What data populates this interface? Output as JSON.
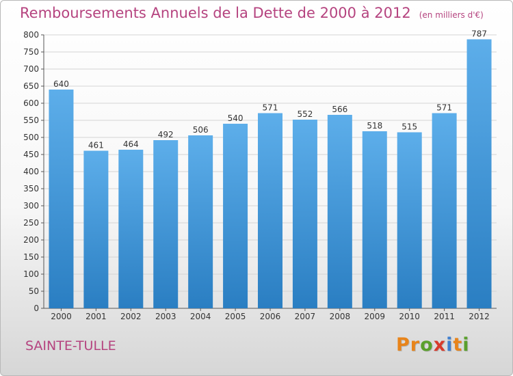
{
  "header": {
    "title": "Remboursements Annuels de la Dette de 2000 à 2012",
    "unit": "(en milliers d'€)"
  },
  "footer": {
    "place": "SAINTE-TULLE",
    "brand": "Proxiti",
    "brand_colors": [
      "#e8841a",
      "#e8841a",
      "#5aa02c",
      "#d83a2b",
      "#3f7fcf",
      "#e8841a",
      "#5aa02c"
    ]
  },
  "colors": {
    "bar_light": "#5daeea",
    "bar_dark": "#2a7ec2",
    "title": "#b5437f",
    "grid": "#d4d4d4"
  },
  "chart_data": {
    "type": "bar",
    "title": "Remboursements Annuels de la Dette de 2000 à 2012",
    "xlabel": "",
    "ylabel": "",
    "categories": [
      "2000",
      "2001",
      "2002",
      "2003",
      "2004",
      "2005",
      "2006",
      "2007",
      "2008",
      "2009",
      "2010",
      "2011",
      "2012"
    ],
    "values": [
      640,
      461,
      464,
      492,
      506,
      540,
      571,
      552,
      566,
      518,
      515,
      571,
      787
    ],
    "ylim": [
      0,
      800
    ],
    "yticks": [
      0,
      50,
      100,
      150,
      200,
      250,
      300,
      350,
      400,
      450,
      500,
      550,
      600,
      650,
      700,
      750,
      800
    ],
    "grid": true,
    "legend": "none"
  }
}
